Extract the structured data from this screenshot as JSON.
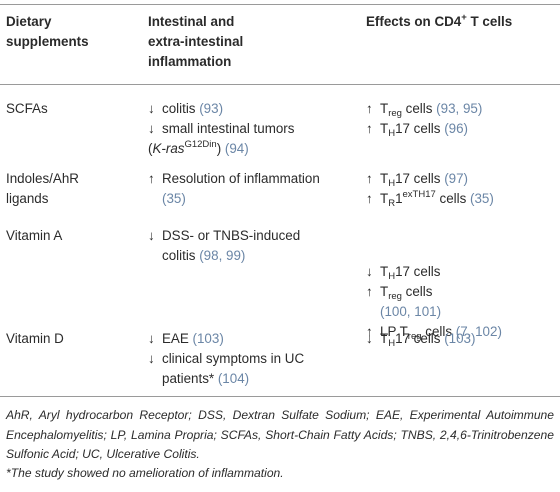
{
  "headers": {
    "col1": [
      "Dietary",
      "supplements"
    ],
    "col2": [
      "Intestinal and",
      "extra-intestinal",
      "inflammation"
    ],
    "col3_prefix": "Effects on CD4",
    "col3_sup": "+",
    "col3_suffix": " T cells"
  },
  "rows": [
    {
      "supplement": [
        "SCFAs"
      ],
      "inflammation": [
        {
          "arrow": "↓",
          "text": "colitis ",
          "ref": "(93)"
        },
        {
          "arrow": "↓",
          "text": "small intestinal tumors"
        },
        {
          "pre": "(",
          "italic": "K-ras",
          "sup": "G12Din",
          "text": ") ",
          "ref": "(94)"
        }
      ],
      "effects": [
        {
          "arrow": "↑",
          "T": "T",
          "sub": "reg",
          "text": " cells ",
          "ref": "(93, 95)"
        },
        {
          "arrow": "↑",
          "T": "T",
          "sub": "H",
          "text": "17 cells ",
          "ref": "(96)"
        }
      ]
    },
    {
      "supplement": [
        "Indoles/AhR",
        "ligands"
      ],
      "inflammation": [
        {
          "arrow": "↑",
          "text": "Resolution of inflammation"
        },
        {
          "ref": "(35)"
        }
      ],
      "effects": [
        {
          "arrow": "↑",
          "T": "T",
          "sub": "H",
          "text": "17 cells ",
          "ref": "(97)"
        },
        {
          "arrow": "↑",
          "T": "T",
          "sub": "R",
          "text": "1",
          "sup": "exTH17",
          "text2": " cells ",
          "ref": "(35)"
        }
      ]
    },
    {
      "supplement": [
        "Vitamin A"
      ],
      "inflammation": [
        {
          "arrow": "↓",
          "text": "DSS- or TNBS-induced"
        },
        {
          "text": "colitis ",
          "ref": "(98, 99)"
        }
      ],
      "effects": [
        {
          "arrow": "↓",
          "T": "T",
          "sub": "H",
          "text": "17 cells"
        },
        {
          "arrow": "↑",
          "T": "T",
          "sub": "reg",
          "text": " cells"
        },
        {
          "ref": "(100, 101)"
        },
        {
          "arrow": "↑",
          "T": "LP T",
          "sub": "reg",
          "text": " cells ",
          "ref": "(7, 102)"
        }
      ]
    },
    {
      "supplement": [
        "Vitamin D"
      ],
      "inflammation": [
        {
          "arrow": "↓",
          "text": "EAE ",
          "ref": "(103)"
        },
        {
          "arrow": "↓",
          "text": "clinical symptoms in UC"
        },
        {
          "text": "patients* ",
          "ref": "(104)"
        }
      ],
      "effects": [
        {
          "arrow": "↓",
          "T": "T",
          "sub": "H",
          "text": "17 cells ",
          "ref": "(103)"
        }
      ]
    }
  ],
  "footnote": "AhR, Aryl hydrocarbon Receptor; DSS, Dextran Sulfate Sodium; EAE, Experimental Autoimmune Encephalomyelitis; LP, Lamina Propria; SCFAs, Short-Chain Fatty Acids; TNBS, 2,4,6-Trinitrobenzene Sulfonic Acid; UC, Ulcerative Colitis.",
  "footnote2": "*The study showed no amelioration of inflammation."
}
